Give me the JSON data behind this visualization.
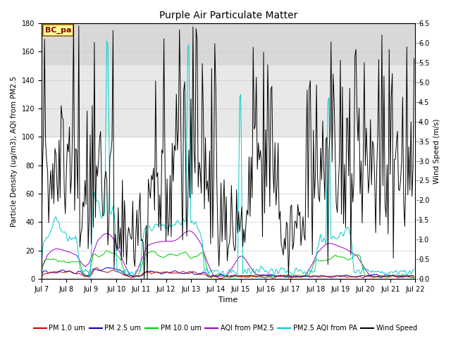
{
  "title": "Purple Air Particulate Matter",
  "xlabel": "Time",
  "ylabel_left": "Particle Density (ug/m3), AQI from PM2.5",
  "ylabel_right": "Wind Speed (m/s)",
  "annotation_text": "BC_pa",
  "annotation_bg": "#FFFF99",
  "annotation_border": "#996600",
  "ylim_left": [
    0,
    180
  ],
  "ylim_right": [
    0.0,
    6.5
  ],
  "yticks_left": [
    0,
    20,
    40,
    60,
    80,
    100,
    120,
    140,
    160,
    180
  ],
  "yticks_right": [
    0.0,
    0.5,
    1.0,
    1.5,
    2.0,
    2.5,
    3.0,
    3.5,
    4.0,
    4.5,
    5.0,
    5.5,
    6.0,
    6.5
  ],
  "background_color": "#ffffff",
  "band_150_180_color": "#d8d8d8",
  "band_100_150_color": "#e8e8e8",
  "colors": {
    "pm1": "#cc0000",
    "pm25": "#0000cc",
    "pm10": "#00cc00",
    "aqi_pm25": "#9900cc",
    "aqi_pa": "#00cccc",
    "wind": "#000000"
  },
  "legend_labels": [
    "PM 1.0 um",
    "PM 2.5 um",
    "PM 10.0 um",
    "AQI from PM2.5",
    "PM2.5 AQI from PA",
    "Wind Speed"
  ],
  "xtick_labels": [
    "Jul 7",
    "Jul 8",
    "Jul 9",
    "Jul 10",
    "Jul 11",
    "Jul 12",
    "Jul 13",
    "Jul 14",
    "Jul 15",
    "Jul 16",
    "Jul 17",
    "Jul 18",
    "Jul 19",
    "Jul 20",
    "Jul 21",
    "Jul 22"
  ],
  "xtick_positions": [
    0,
    24,
    48,
    72,
    96,
    120,
    144,
    168,
    192,
    216,
    240,
    264,
    288,
    312,
    336,
    360
  ]
}
